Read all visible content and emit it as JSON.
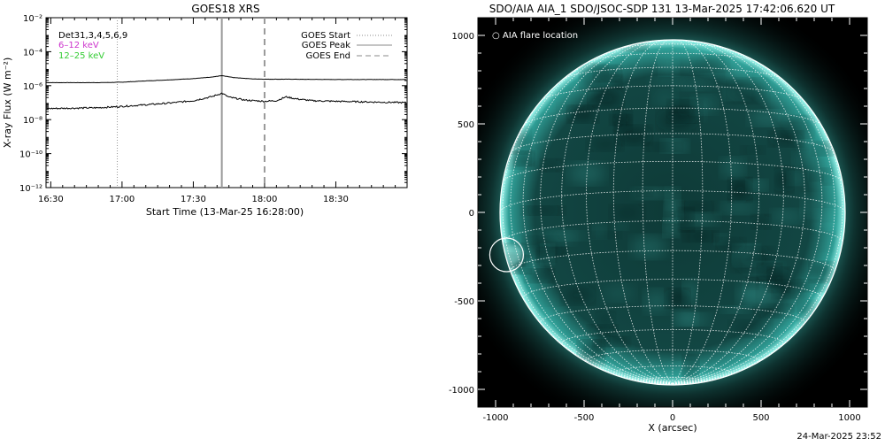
{
  "footer_timestamp": "24-Mar-2025 23:52",
  "chart_data": [
    {
      "type": "line",
      "title": "GOES18 XRS",
      "xlabel": "Start Time (13-Mar-25 16:28:00)",
      "ylabel": "X-ray Flux (W m⁻²)",
      "yscale": "log",
      "xlim": [
        "16:28",
        "19:00"
      ],
      "ylim": [
        1e-12,
        0.01
      ],
      "x_tick_labels": [
        "16:30",
        "17:00",
        "17:30",
        "18:00",
        "18:30"
      ],
      "y_tick_labels": [
        "10⁻¹²",
        "10⁻¹⁰",
        "10⁻⁸",
        "10⁻⁶",
        "10⁻⁴",
        "10⁻²"
      ],
      "legend_left": [
        {
          "text": "Det31,3,4,5,6,9",
          "color": "#000000"
        },
        {
          "text": "6–12 keV",
          "color": "#cc33cc"
        },
        {
          "text": "12–25 keV",
          "color": "#33cc33"
        }
      ],
      "legend_right": [
        {
          "text": "GOES Start",
          "style": "dotted"
        },
        {
          "text": "GOES Peak",
          "style": "solid"
        },
        {
          "text": "GOES End",
          "style": "dashed"
        }
      ],
      "events": {
        "start": "16:58",
        "peak": "17:42",
        "end": "18:00"
      },
      "series": [
        {
          "color": "#000000",
          "x": [
            "16:28",
            "16:50",
            "17:00",
            "17:10",
            "17:20",
            "17:30",
            "17:38",
            "17:42",
            "17:47",
            "17:55",
            "18:00",
            "18:10",
            "18:30",
            "19:00"
          ],
          "y": [
            1.5e-06,
            1.5e-06,
            1.6e-06,
            1.9e-06,
            2.2e-06,
            2.6e-06,
            3.2e-06,
            3.9e-06,
            3e-06,
            2.5e-06,
            2.4e-06,
            2.4e-06,
            2.3e-06,
            2.3e-06
          ]
        },
        {
          "color": "#000000",
          "x": [
            "16:28",
            "16:50",
            "17:00",
            "17:10",
            "17:20",
            "17:30",
            "17:38",
            "17:42",
            "17:45",
            "17:52",
            "18:00",
            "18:05",
            "18:09",
            "18:13",
            "18:20",
            "18:30",
            "19:00"
          ],
          "y": [
            4.5e-08,
            5e-08,
            6e-08,
            7.5e-08,
            9.5e-08,
            1.3e-07,
            2.3e-07,
            3.6e-07,
            2.1e-07,
            1.4e-07,
            1.2e-07,
            1.3e-07,
            2.2e-07,
            1.7e-07,
            1.3e-07,
            1.2e-07,
            1e-07
          ]
        }
      ]
    },
    {
      "type": "heatmap",
      "title": "SDO/AIA AIA_1 SDO/JSOC-SDP 131 13-Mar-2025 17:42:06.620 UT",
      "xlabel": "X (arcsec)",
      "ylabel": "",
      "xlim": [
        -1100,
        1100
      ],
      "ylim": [
        -1100,
        1100
      ],
      "x_ticks": [
        -1000,
        -500,
        0,
        500,
        1000
      ],
      "y_ticks": [
        -1000,
        -500,
        0,
        500,
        1000
      ],
      "legend": "○ AIA flare location",
      "solar_radius": 975,
      "grid_spacing_deg": 10,
      "b0_deg": -7.2,
      "flare_location": {
        "x": -938,
        "y": -240,
        "radius": 95
      },
      "colors": {
        "disk": "#0b2f2d",
        "bright": "#4fd6cc",
        "limb": "#a8fff6",
        "background": "#000000"
      }
    }
  ]
}
